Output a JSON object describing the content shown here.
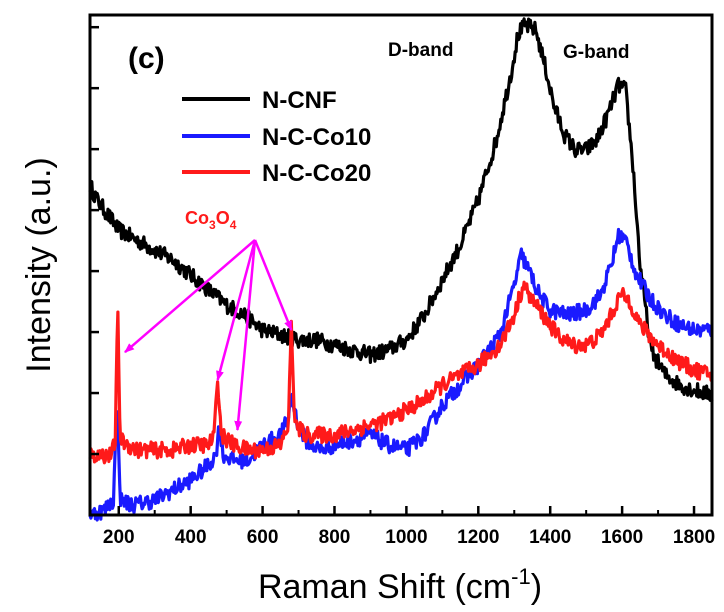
{
  "chart_data": {
    "type": "line",
    "panel_label": "(c)",
    "xlabel": "Raman Shift (cm",
    "xlabel_sup": "-1",
    "xlabel_end": ")",
    "ylabel": "Intensity (a.u.)",
    "xlim": [
      120,
      1850
    ],
    "ylim": [
      0,
      100
    ],
    "x_ticks": [
      200,
      400,
      600,
      800,
      1000,
      1200,
      1400,
      1600,
      1800
    ],
    "y_ticks_count": 8,
    "grid": false,
    "legend_position": "top-left",
    "annotations": {
      "d_band": "D-band",
      "g_band": "G-band",
      "co3o4_prefix": "Co",
      "co3o4_sub1": "3",
      "co3o4_mid": "O",
      "co3o4_sub2": "4",
      "co3o4_color": "#ff1a1a",
      "arrow_color": "#ff00ff",
      "arrow_targets_x": [
        195,
        475,
        530,
        680
      ]
    },
    "series": [
      {
        "name": "N-CNF",
        "color": "#000000",
        "points": [
          [
            120,
            66
          ],
          [
            140,
            63
          ],
          [
            170,
            60
          ],
          [
            200,
            57
          ],
          [
            250,
            55
          ],
          [
            300,
            53
          ],
          [
            350,
            51
          ],
          [
            400,
            48
          ],
          [
            450,
            45
          ],
          [
            500,
            42
          ],
          [
            550,
            40
          ],
          [
            600,
            37
          ],
          [
            650,
            36
          ],
          [
            700,
            35
          ],
          [
            750,
            35
          ],
          [
            800,
            34
          ],
          [
            850,
            33
          ],
          [
            900,
            32
          ],
          [
            950,
            33
          ],
          [
            1000,
            35
          ],
          [
            1050,
            40
          ],
          [
            1100,
            47
          ],
          [
            1150,
            54
          ],
          [
            1200,
            63
          ],
          [
            1250,
            75
          ],
          [
            1290,
            88
          ],
          [
            1310,
            96
          ],
          [
            1330,
            98
          ],
          [
            1360,
            97
          ],
          [
            1385,
            90
          ],
          [
            1410,
            82
          ],
          [
            1440,
            76
          ],
          [
            1470,
            73
          ],
          [
            1500,
            73
          ],
          [
            1530,
            75
          ],
          [
            1560,
            80
          ],
          [
            1590,
            86
          ],
          [
            1610,
            85
          ],
          [
            1630,
            70
          ],
          [
            1650,
            50
          ],
          [
            1680,
            33
          ],
          [
            1720,
            28
          ],
          [
            1760,
            26
          ],
          [
            1800,
            25
          ],
          [
            1850,
            24
          ]
        ]
      },
      {
        "name": "N-C-Co10",
        "color": "#1a1aff",
        "points": [
          [
            120,
            0
          ],
          [
            160,
            1
          ],
          [
            185,
            3
          ],
          [
            195,
            22
          ],
          [
            205,
            3
          ],
          [
            240,
            2
          ],
          [
            300,
            3
          ],
          [
            350,
            5
          ],
          [
            400,
            7
          ],
          [
            450,
            10
          ],
          [
            470,
            12
          ],
          [
            480,
            18
          ],
          [
            490,
            12
          ],
          [
            520,
            11
          ],
          [
            560,
            11
          ],
          [
            600,
            14
          ],
          [
            650,
            16
          ],
          [
            670,
            19
          ],
          [
            682,
            24
          ],
          [
            695,
            19
          ],
          [
            720,
            15
          ],
          [
            760,
            13
          ],
          [
            800,
            14
          ],
          [
            850,
            15
          ],
          [
            900,
            16
          ],
          [
            950,
            14
          ],
          [
            1000,
            13
          ],
          [
            1050,
            16
          ],
          [
            1100,
            22
          ],
          [
            1150,
            26
          ],
          [
            1200,
            30
          ],
          [
            1260,
            36
          ],
          [
            1300,
            46
          ],
          [
            1320,
            52
          ],
          [
            1340,
            49
          ],
          [
            1370,
            44
          ],
          [
            1400,
            41
          ],
          [
            1450,
            40
          ],
          [
            1500,
            41
          ],
          [
            1540,
            44
          ],
          [
            1570,
            50
          ],
          [
            1590,
            56
          ],
          [
            1610,
            55
          ],
          [
            1640,
            48
          ],
          [
            1680,
            43
          ],
          [
            1720,
            40
          ],
          [
            1760,
            38
          ],
          [
            1800,
            37
          ],
          [
            1850,
            37
          ]
        ]
      },
      {
        "name": "N-C-Co20",
        "color": "#ff1a1a",
        "points": [
          [
            120,
            12
          ],
          [
            180,
            12
          ],
          [
            190,
            15
          ],
          [
            197,
            41
          ],
          [
            204,
            15
          ],
          [
            250,
            13
          ],
          [
            300,
            13
          ],
          [
            350,
            13
          ],
          [
            400,
            14
          ],
          [
            450,
            14
          ],
          [
            466,
            16
          ],
          [
            475,
            28
          ],
          [
            485,
            16
          ],
          [
            520,
            14
          ],
          [
            560,
            13
          ],
          [
            600,
            13
          ],
          [
            650,
            14
          ],
          [
            672,
            18
          ],
          [
            680,
            38
          ],
          [
            690,
            18
          ],
          [
            720,
            16
          ],
          [
            760,
            16
          ],
          [
            800,
            16
          ],
          [
            850,
            17
          ],
          [
            900,
            18
          ],
          [
            950,
            19
          ],
          [
            1000,
            21
          ],
          [
            1050,
            23
          ],
          [
            1100,
            26
          ],
          [
            1150,
            28
          ],
          [
            1200,
            30
          ],
          [
            1260,
            34
          ],
          [
            1300,
            40
          ],
          [
            1325,
            46
          ],
          [
            1350,
            43
          ],
          [
            1380,
            40
          ],
          [
            1420,
            36
          ],
          [
            1460,
            34
          ],
          [
            1500,
            34
          ],
          [
            1540,
            36
          ],
          [
            1570,
            40
          ],
          [
            1595,
            44
          ],
          [
            1620,
            43
          ],
          [
            1650,
            38
          ],
          [
            1700,
            34
          ],
          [
            1750,
            31
          ],
          [
            1800,
            29
          ],
          [
            1850,
            28
          ]
        ]
      }
    ]
  }
}
